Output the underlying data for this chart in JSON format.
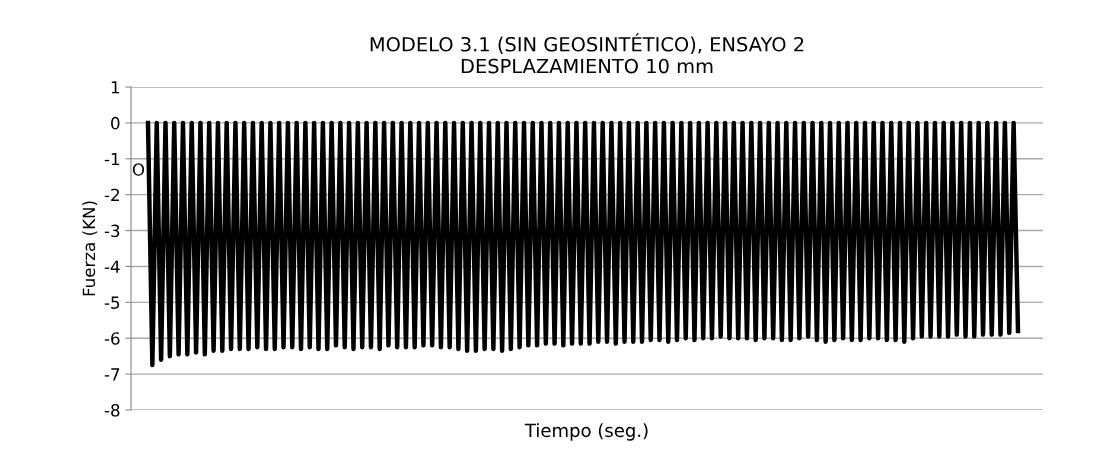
{
  "chart_data": {
    "type": "line",
    "title": "MODELO 3.1 (SIN GEOSINTÉTICO), ENSAYO 2\nDESPLAZAMIENTO 10 mm",
    "xlabel": "Tiempo (seg.)",
    "ylabel": "Fuerza (KN)",
    "annotations": [
      "O"
    ],
    "categories": [
      null,
      null,
      null,
      null,
      null,
      null,
      null,
      null,
      null,
      null,
      null,
      null,
      null,
      null,
      null,
      null,
      null,
      null,
      null,
      null,
      null,
      null,
      null,
      null,
      null,
      null,
      null,
      null,
      null,
      null,
      null,
      null,
      null,
      null,
      null,
      null,
      null,
      null,
      null,
      null,
      null,
      null,
      null,
      null,
      null,
      null,
      null,
      null,
      null,
      null,
      null,
      null,
      null,
      null,
      null,
      null,
      null,
      null,
      null,
      null,
      null,
      null,
      null,
      null,
      null,
      null,
      null,
      null,
      null,
      null,
      null,
      null,
      null,
      null,
      null,
      null,
      null,
      null,
      null,
      null,
      null,
      null,
      null,
      null,
      null,
      null,
      null,
      null,
      null,
      null,
      null,
      null,
      null,
      null,
      null,
      null,
      null,
      null,
      null,
      null,
      null,
      null,
      null,
      null,
      null,
      null,
      null,
      null,
      null,
      null,
      null,
      null,
      null,
      null,
      null,
      null,
      null,
      null,
      null,
      null,
      null,
      null,
      null,
      null,
      null,
      null,
      null,
      null,
      null,
      null,
      null,
      null,
      null,
      null,
      null,
      null,
      null,
      null,
      null,
      null,
      null,
      null,
      null,
      null,
      null,
      null,
      null,
      null,
      null,
      null,
      null,
      null,
      null,
      null,
      null,
      null,
      null,
      null,
      null,
      null,
      null,
      null,
      null,
      null,
      null,
      null,
      null,
      null,
      null,
      null,
      null,
      null,
      null,
      null,
      null,
      null,
      null,
      null,
      null,
      null,
      null,
      null,
      null,
      null,
      null,
      null,
      null,
      null,
      null,
      null,
      null,
      null,
      null,
      null,
      null,
      null,
      null,
      null,
      null,
      null
    ],
    "series": [
      {
        "color": "#000000",
        "values": [
          0,
          -6.75,
          0,
          -6.6,
          0,
          -6.5,
          0,
          -6.45,
          0,
          -6.45,
          0,
          -6.4,
          0,
          -6.45,
          0,
          -6.35,
          0,
          -6.35,
          0,
          -6.3,
          0,
          -6.3,
          0,
          -6.3,
          0,
          -6.25,
          0,
          -6.3,
          0,
          -6.3,
          0,
          -6.25,
          0,
          -6.25,
          0,
          -6.3,
          0,
          -6.25,
          0,
          -6.3,
          0,
          -6.3,
          0,
          -6.2,
          0,
          -6.25,
          0,
          -6.3,
          0,
          -6.25,
          0,
          -6.25,
          0,
          -6.3,
          0,
          -6.2,
          0,
          -6.25,
          0,
          -6.25,
          0,
          -6.25,
          0,
          -6.2,
          0,
          -6.2,
          0,
          -6.25,
          0,
          -6.25,
          0,
          -6.3,
          0,
          -6.35,
          0,
          -6.35,
          0,
          -6.3,
          0,
          -6.3,
          0,
          -6.35,
          0,
          -6.3,
          0,
          -6.25,
          0,
          -6.2,
          0,
          -6.2,
          0,
          -6.15,
          0,
          -6.15,
          0,
          -6.2,
          0,
          -6.15,
          0,
          -6.15,
          0,
          -6.15,
          0,
          -6.1,
          0,
          -6.1,
          0,
          -6.15,
          0,
          -6.1,
          0,
          -6.1,
          0,
          -6.1,
          0,
          -6.05,
          0,
          -6.05,
          0,
          -6.1,
          0,
          -6.05,
          0,
          -6.0,
          0,
          -6.05,
          0,
          -6.0,
          0,
          -6.0,
          0,
          -5.95,
          0,
          -6.0,
          0,
          -6.0,
          0,
          -6.0,
          0,
          -6.05,
          0,
          -6.0,
          0,
          -6.0,
          0,
          -6.05,
          0,
          -6.05,
          0,
          -6.0,
          0,
          -5.95,
          0,
          -6.05,
          0,
          -6.1,
          0,
          -6.05,
          0,
          -6.0,
          0,
          -6.05,
          0,
          -6.05,
          0,
          -6.0,
          0,
          -6.0,
          0,
          -6.05,
          0,
          -6.05,
          0,
          -6.1,
          0,
          -6.0,
          0,
          -5.95,
          0,
          -5.95,
          0,
          -5.95,
          0,
          -5.95,
          0,
          -5.9,
          0,
          -5.95,
          0,
          -5.95,
          0,
          -5.9,
          0,
          -5.9,
          0,
          -5.9,
          0,
          -5.85,
          0,
          -5.8
        ]
      }
    ],
    "ylim": [
      -8,
      1
    ],
    "yticks": [
      -8,
      -7,
      -6,
      -5,
      -4,
      -3,
      -2,
      -1,
      0,
      1
    ],
    "grid": "y",
    "marker": "none",
    "line_style": "solid"
  }
}
